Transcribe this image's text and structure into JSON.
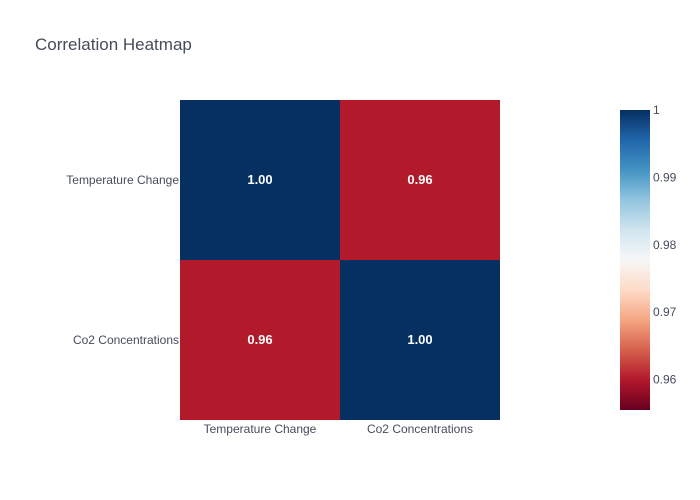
{
  "chart_data": {
    "type": "heatmap",
    "title": "Correlation Heatmap",
    "x_categories": [
      "Temperature Change",
      "Co2 Concentrations"
    ],
    "y_categories": [
      "Temperature Change",
      "Co2 Concentrations"
    ],
    "z": [
      [
        1.0,
        0.96
      ],
      [
        0.96,
        1.0
      ]
    ],
    "cell_labels": [
      [
        "1.00",
        "0.96"
      ],
      [
        "0.96",
        "1.00"
      ]
    ],
    "zrange": [
      0.9555,
      1.0
    ],
    "colorscale": "RdBu",
    "colorbar_ticks": [
      {
        "value": 1.0,
        "label": "1"
      },
      {
        "value": 0.99,
        "label": "0.99"
      },
      {
        "value": 0.98,
        "label": "0.98"
      },
      {
        "value": 0.97,
        "label": "0.97"
      },
      {
        "value": 0.96,
        "label": "0.96"
      }
    ],
    "colors": {
      "high": "#053061",
      "low": "#67001f",
      "mid": "#f7f7f7",
      "text": "#444c5c"
    }
  }
}
